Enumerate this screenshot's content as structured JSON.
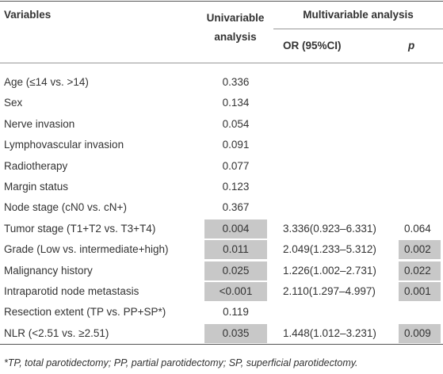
{
  "table": {
    "headers": {
      "variables": "Variables",
      "univariable": "Univariable analysis",
      "multivariable": "Multivariable analysis",
      "or": "OR (95%CI)",
      "p": "p"
    },
    "rows": [
      {
        "variable": "Age (≤14 vs. >14)",
        "univariable": "0.336"
      },
      {
        "variable": "Sex",
        "univariable": "0.134"
      },
      {
        "variable": "Nerve invasion",
        "univariable": "0.054"
      },
      {
        "variable": "Lymphovascular invasion",
        "univariable": "0.091"
      },
      {
        "variable": "Radiotherapy",
        "univariable": "0.077"
      },
      {
        "variable": "Margin status",
        "univariable": "0.123"
      },
      {
        "variable": "Node stage (cN0 vs. cN+)",
        "univariable": "0.367"
      },
      {
        "variable": "Tumor stage (T1+T2 vs. T3+T4)",
        "univariable": "0.004",
        "univariable_shaded": true,
        "or": "3.336(0.923–6.331)",
        "p": "0.064"
      },
      {
        "variable": "Grade (Low vs. intermediate+high)",
        "univariable": "0.011",
        "univariable_shaded": true,
        "or": "2.049(1.233–5.312)",
        "p": "0.002",
        "p_shaded": true
      },
      {
        "variable": "Malignancy history",
        "univariable": "0.025",
        "univariable_shaded": true,
        "or": "1.226(1.002–2.731)",
        "p": "0.022",
        "p_shaded": true
      },
      {
        "variable": "Intraparotid node metastasis",
        "univariable": "<0.001",
        "univariable_shaded": true,
        "or": "2.110(1.297–4.997)",
        "p": "0.001",
        "p_shaded": true
      },
      {
        "variable": "Resection extent (TP vs. PP+SP*)",
        "univariable": "0.119"
      },
      {
        "variable": "NLR (<2.51 vs. ≥2.51)",
        "univariable": "0.035",
        "univariable_shaded": true,
        "or": "1.448(1.012–3.231)",
        "p": "0.009",
        "p_shaded": true
      }
    ],
    "footnote": "*TP, total parotidectomy; PP, partial parotidectomy; SP, superficial parotidectomy."
  }
}
